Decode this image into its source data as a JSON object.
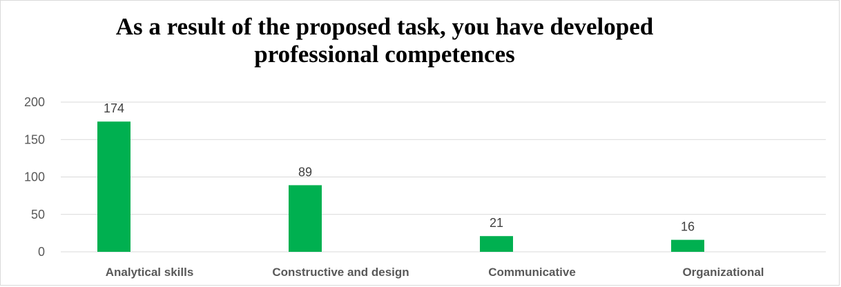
{
  "chart_data": {
    "type": "bar",
    "title_lines": [
      "As a result of the proposed task, you have developed",
      "professional competences"
    ],
    "categories": [
      "Analytical skills",
      "Constructive and design",
      "Communicative",
      "Organizational"
    ],
    "values": [
      174,
      89,
      21,
      16
    ],
    "data_labels": [
      "174",
      "89",
      "21",
      "16"
    ],
    "ylim": [
      0,
      200
    ],
    "yticks": [
      0,
      50,
      100,
      150,
      200
    ],
    "xlabel": "",
    "ylabel": "",
    "grid": true,
    "legend": "none",
    "bar_color": "#00b050"
  }
}
